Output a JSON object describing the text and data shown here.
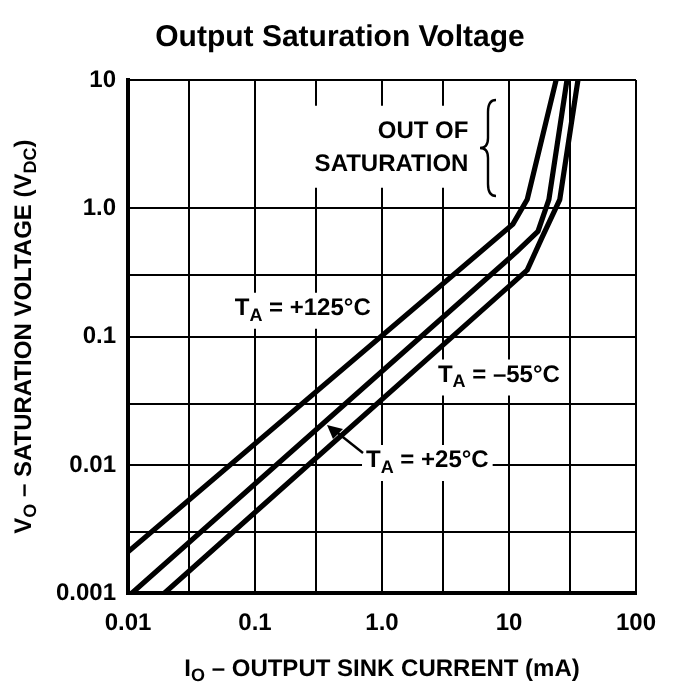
{
  "chart_data": {
    "type": "line",
    "title": "Output Saturation Voltage",
    "xlabel": "I$_{O}$ – OUTPUT SINK CURRENT (mA)",
    "ylabel": "V$_{O}$ – SATURATION VOLTAGE (V$_{DC}$)",
    "log": "xy",
    "grid": true,
    "marker": "none",
    "line_style": "solid",
    "xlim": [
      0.01,
      100
    ],
    "ylim": [
      0.001,
      10
    ],
    "xticks": [
      0.01,
      {
        "value": 0.03,
        "label": null
      },
      0.1,
      {
        "value": 0.3,
        "label": null
      },
      {
        "value": 1,
        "label": "1.0"
      },
      {
        "value": 3,
        "label": null
      },
      10,
      {
        "value": 30,
        "label": null
      },
      100
    ],
    "yticks": [
      0.001,
      {
        "value": 0.003,
        "label": null
      },
      0.01,
      {
        "value": 0.03,
        "label": null
      },
      0.1,
      {
        "value": 0.3,
        "label": null
      },
      {
        "value": 1,
        "label": "1.0"
      },
      10
    ],
    "annotations": [
      "OUT OF SATURATION"
    ],
    "series": [
      {
        "name": "T$_{A}$ = +125°C",
        "color": "#000000",
        "x": [
          0.01,
          10.7,
          13.9,
          23.5
        ],
        "values": [
          0.0021,
          0.75,
          1.17,
          10
        ]
      },
      {
        "name": "T$_{A}$ = +25°C",
        "color": "#000000",
        "x": [
          0.0107,
          11.4,
          16.9,
          20.6,
          28.6
        ],
        "values": [
          0.001,
          0.455,
          0.66,
          1.17,
          10
        ]
      },
      {
        "name": "T$_{A}$ = –55°C",
        "color": "#000000",
        "x": [
          0.0193,
          13.9,
          18.1,
          25.1,
          34.9
        ],
        "values": [
          0.001,
          0.33,
          0.585,
          1.17,
          10
        ]
      }
    ]
  }
}
